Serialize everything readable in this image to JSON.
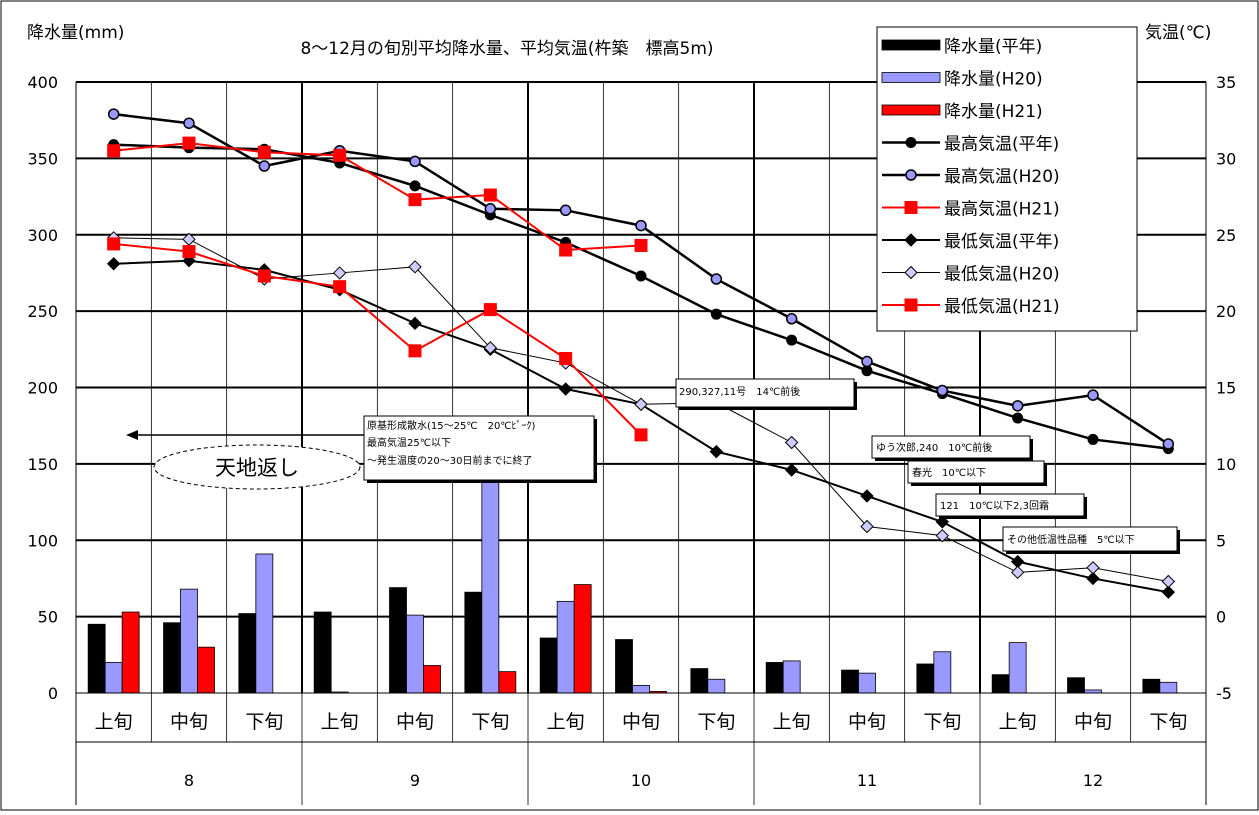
{
  "chart_data": {
    "type": "bar+line",
    "title": "8～12月の旬別平均降水量、平均気温(杵築　標高5m)",
    "ylabel_left": "降水量(mm)",
    "ylabel_right": "気温(℃)",
    "ylim_left": [
      0,
      400
    ],
    "ylim_right": [
      -5,
      35
    ],
    "yticks_left": [
      "0",
      "50",
      "100",
      "150",
      "200",
      "250",
      "300",
      "350",
      "400"
    ],
    "yticks_right": [
      "-5",
      "0",
      "5",
      "10",
      "15",
      "20",
      "25",
      "30",
      "35"
    ],
    "categories": [
      "上旬",
      "中旬",
      "下旬",
      "上旬",
      "中旬",
      "下旬",
      "上旬",
      "中旬",
      "下旬",
      "上旬",
      "中旬",
      "下旬",
      "上旬",
      "中旬",
      "下旬"
    ],
    "months": [
      "8",
      "9",
      "10",
      "11",
      "12"
    ],
    "grid": true,
    "legend_position": "top-right",
    "bar_series": [
      {
        "name": "降水量(平年)",
        "color": "#000000",
        "values": [
          45,
          46,
          52,
          53,
          69,
          66,
          36,
          35,
          16,
          20,
          15,
          19,
          12,
          10,
          9
        ]
      },
      {
        "name": "降水量(H20)",
        "color": "#9999ff",
        "values": [
          20,
          68,
          91,
          0,
          51,
          145,
          60,
          5,
          9,
          21,
          13,
          27,
          33,
          2,
          7
        ]
      },
      {
        "name": "降水量(H21)",
        "color": "#ff0000",
        "values": [
          53,
          30,
          null,
          null,
          18,
          14,
          71,
          1,
          null,
          null,
          null,
          null,
          null,
          null,
          null
        ]
      }
    ],
    "line_series": [
      {
        "name": "最高気温(平年)",
        "color": "#000000",
        "marker": "circle",
        "width": 2.5,
        "values": [
          30.9,
          30.7,
          30.6,
          29.7,
          28.2,
          26.3,
          24.5,
          22.3,
          19.8,
          18.1,
          16.1,
          14.6,
          13.0,
          11.6,
          11.0
        ]
      },
      {
        "name": "最高気温(H20)",
        "color": "#000000",
        "marker": "circle-open",
        "width": 2.5,
        "values": [
          32.9,
          32.3,
          29.5,
          30.5,
          29.8,
          26.7,
          26.6,
          25.6,
          22.1,
          19.5,
          16.7,
          14.8,
          13.8,
          14.5,
          11.3
        ]
      },
      {
        "name": "最高気温(H21)",
        "color": "#ff0000",
        "marker": "square",
        "width": 2,
        "values": [
          30.5,
          31.0,
          30.4,
          30.2,
          27.3,
          27.6,
          24.0,
          24.3,
          null,
          null,
          null,
          null,
          null,
          null,
          null
        ]
      },
      {
        "name": "最低気温(平年)",
        "color": "#000000",
        "marker": "diamond",
        "width": 2,
        "values": [
          23.1,
          23.3,
          22.7,
          21.4,
          19.2,
          17.5,
          14.9,
          13.9,
          10.8,
          9.6,
          7.9,
          6.2,
          3.6,
          2.5,
          1.6
        ]
      },
      {
        "name": "最低気温(H20)",
        "color": "#000000",
        "marker": "diamond-open",
        "width": 1,
        "values": [
          24.8,
          24.7,
          22.1,
          22.5,
          22.9,
          17.6,
          16.6,
          13.9,
          14.0,
          11.4,
          5.9,
          5.3,
          2.9,
          3.2,
          2.3
        ]
      },
      {
        "name": "最低気温(H21)",
        "color": "#ff0000",
        "marker": "square",
        "width": 2,
        "values": [
          24.4,
          23.9,
          22.3,
          21.6,
          17.4,
          20.1,
          16.9,
          11.9,
          null,
          null,
          null,
          null,
          null,
          null,
          null
        ]
      }
    ],
    "annotations": [
      {
        "id": "tenchi",
        "text": "天地返し"
      },
      {
        "id": "genki1",
        "text": "原基形成散水(15～25℃　20℃ﾋﾟｰｸ)"
      },
      {
        "id": "genki2",
        "text": "最高気温25℃以下"
      },
      {
        "id": "genki3",
        "text": "～発生温度の20～30日前までに終了"
      },
      {
        "id": "v290",
        "text": "290,327,11号　14℃前後"
      },
      {
        "id": "yuu",
        "text": "ゆう次郎,240　10℃前後"
      },
      {
        "id": "shun",
        "text": "春光　10℃以下"
      },
      {
        "id": "v121",
        "text": "121　10℃以下2,3回霜"
      },
      {
        "id": "other",
        "text": "その他低温性品種　5℃以下"
      }
    ]
  }
}
